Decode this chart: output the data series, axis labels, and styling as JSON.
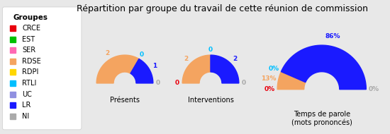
{
  "title": "Répartition par groupe du travail de cette réunion de commission",
  "background_color": "#e8e8e8",
  "groups": [
    "CRCE",
    "EST",
    "SER",
    "RDSE",
    "RDPI",
    "RTLI",
    "UC",
    "LR",
    "NI"
  ],
  "group_colors": {
    "CRCE": "#e8000d",
    "EST": "#00c000",
    "SER": "#ff69b4",
    "RDSE": "#f4a460",
    "RDPI": "#ffd700",
    "RTLI": "#00bfff",
    "UC": "#9090e0",
    "LR": "#1a1aff",
    "NI": "#aaaaaa"
  },
  "presents": {
    "CRCE": 0,
    "EST": 0,
    "SER": 0,
    "RDSE": 2,
    "RDPI": 0,
    "RTLI": 0,
    "UC": 0,
    "LR": 1,
    "NI": 0
  },
  "interventions": {
    "CRCE": 0,
    "EST": 0,
    "SER": 0,
    "RDSE": 2,
    "RDPI": 0,
    "RTLI": 0,
    "UC": 0,
    "LR": 2,
    "NI": 0
  },
  "temps_parole": {
    "CRCE": 0.0,
    "EST": 0.0,
    "SER": 0.0,
    "RDSE": 13.0,
    "RDPI": 0.0,
    "RTLI": 0.0,
    "UC": 0.0,
    "LR": 86.0,
    "NI": 0.0
  },
  "chart_titles": [
    "Présents",
    "Interventions",
    "Temps de parole\n(mots prononcés)"
  ],
  "presents_labels": {
    "CRCE": "",
    "EST": "",
    "SER": "",
    "RDSE": "2",
    "RDPI": "",
    "RTLI": "0",
    "UC": "",
    "LR": "1",
    "NI": "0"
  },
  "interventions_labels": {
    "CRCE": "0",
    "EST": "",
    "SER": "",
    "RDSE": "2",
    "RDPI": "",
    "RTLI": "0",
    "UC": "",
    "LR": "2",
    "NI": "0"
  },
  "temps_labels": {
    "CRCE": "0%",
    "EST": "",
    "SER": "",
    "RDSE": "13%",
    "RDPI": "",
    "RTLI": "0%",
    "UC": "",
    "LR": "86%",
    "NI": "0%"
  }
}
